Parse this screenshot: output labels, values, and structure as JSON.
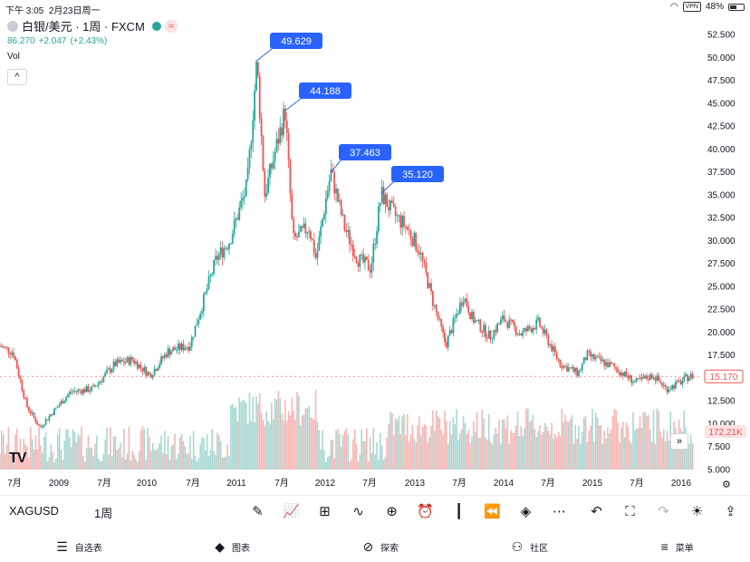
{
  "status_bar": {
    "time": "下午 3:05",
    "date": "2月23日周一",
    "vpn": "VPN",
    "battery": "48%"
  },
  "header": {
    "symbol_title": "白银/美元 · 1周 · FXCM",
    "badge": "≈",
    "last_price": "86.270",
    "change": "+2.047",
    "change_pct": "(+2.43%)",
    "volume_label": "Vol",
    "collapse_glyph": "^"
  },
  "chart_data": {
    "type": "candlestick",
    "y_range": [
      5,
      53
    ],
    "y_ticks": [
      "52.500",
      "50.000",
      "47.500",
      "45.000",
      "42.500",
      "40.000",
      "37.500",
      "35.000",
      "32.500",
      "30.000",
      "27.500",
      "25.000",
      "22.500",
      "20.000",
      "17.500",
      "15.000",
      "12.500",
      "10.000",
      "7.500",
      "5.000"
    ],
    "x_ticks": [
      "7月",
      "2009",
      "7月",
      "2010",
      "7月",
      "2011",
      "7月",
      "2012",
      "7月",
      "2013",
      "7月",
      "2014",
      "7月",
      "2015",
      "7月",
      "2016"
    ],
    "x_start": 2008.4,
    "x_end": 2016.25,
    "price_path": [
      [
        2008.4,
        18.5
      ],
      [
        2008.55,
        17.8
      ],
      [
        2008.7,
        12.0
      ],
      [
        2008.85,
        9.6
      ],
      [
        2009.0,
        11.3
      ],
      [
        2009.2,
        13.5
      ],
      [
        2009.45,
        13.8
      ],
      [
        2009.7,
        16.5
      ],
      [
        2009.9,
        17.0
      ],
      [
        2010.1,
        15.3
      ],
      [
        2010.3,
        17.9
      ],
      [
        2010.55,
        18.6
      ],
      [
        2010.85,
        28.0
      ],
      [
        2011.0,
        30.0
      ],
      [
        2011.2,
        36.0
      ],
      [
        2011.31,
        49.6
      ],
      [
        2011.4,
        35.0
      ],
      [
        2011.5,
        39.0
      ],
      [
        2011.63,
        44.188
      ],
      [
        2011.72,
        30.0
      ],
      [
        2011.9,
        31.5
      ],
      [
        2011.98,
        28.0
      ],
      [
        2012.1,
        35.0
      ],
      [
        2012.15,
        37.463
      ],
      [
        2012.3,
        31.5
      ],
      [
        2012.45,
        28.0
      ],
      [
        2012.6,
        27.0
      ],
      [
        2012.72,
        35.12
      ],
      [
        2012.85,
        33.0
      ],
      [
        2013.0,
        31.5
      ],
      [
        2013.15,
        29.0
      ],
      [
        2013.3,
        23.5
      ],
      [
        2013.45,
        18.6
      ],
      [
        2013.65,
        24.0
      ],
      [
        2013.75,
        21.5
      ],
      [
        2013.95,
        19.5
      ],
      [
        2014.1,
        21.5
      ],
      [
        2014.3,
        19.8
      ],
      [
        2014.5,
        21.0
      ],
      [
        2014.75,
        16.5
      ],
      [
        2014.95,
        15.5
      ],
      [
        2015.05,
        17.5
      ],
      [
        2015.35,
        16.2
      ],
      [
        2015.6,
        14.5
      ],
      [
        2015.8,
        15.3
      ],
      [
        2015.95,
        13.8
      ],
      [
        2016.1,
        14.5
      ],
      [
        2016.2,
        15.17
      ]
    ],
    "annotations": [
      {
        "label": "49.629",
        "x": 2011.31,
        "y": 49.629
      },
      {
        "label": "44.188",
        "x": 2011.63,
        "y": 44.188
      },
      {
        "label": "37.463",
        "x": 2012.15,
        "y": 37.463
      },
      {
        "label": "35.120",
        "x": 2012.72,
        "y": 35.12
      }
    ],
    "last_price_label": "15.170",
    "last_price_value": 15.17,
    "volume_label": "172.21K",
    "colors": {
      "up": "#26a69a",
      "down": "#ef5350",
      "annotation": "#2962ff",
      "volume_up": "#a7d8d3",
      "volume_down": "#f5b7b5"
    }
  },
  "toolbar": {
    "symbol": "XAGUSD",
    "interval": "1周",
    "icons": [
      "pencil-icon",
      "chart-type-icon",
      "grid-icon",
      "indicator-icon",
      "plus-circle-icon",
      "alarm-icon",
      "candles-icon",
      "replay-icon",
      "layers-icon",
      "more-icon"
    ],
    "right_icons": [
      "undo-icon",
      "fullscreen-icon",
      "redo-icon",
      "lightbulb-icon",
      "share-icon"
    ]
  },
  "tabs": [
    {
      "label": "自选表",
      "icon": "watchlist-icon"
    },
    {
      "label": "图表",
      "icon": "chart-tab-icon"
    },
    {
      "label": "探索",
      "icon": "compass-icon"
    },
    {
      "label": "社区",
      "icon": "community-icon"
    },
    {
      "label": "菜单",
      "icon": "menu-icon"
    }
  ],
  "logo": "TV",
  "scroll_glyph": "»"
}
